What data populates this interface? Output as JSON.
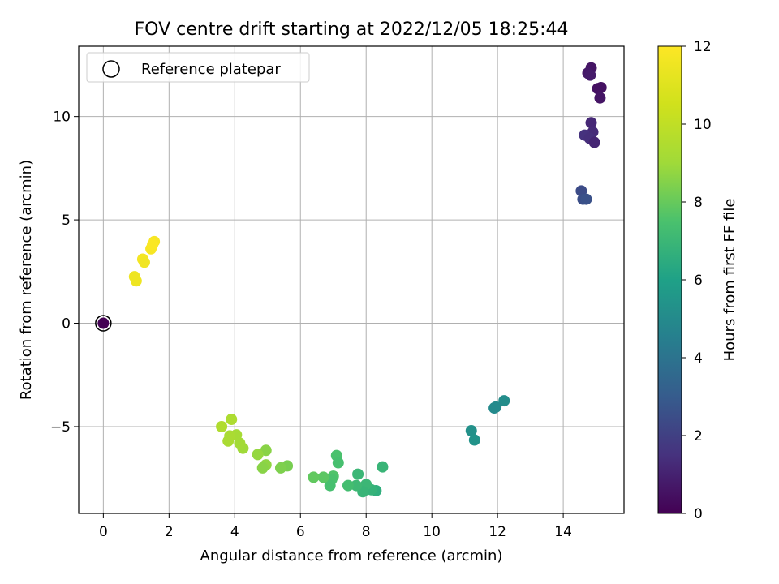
{
  "chart_data": {
    "type": "scatter",
    "title": "FOV centre drift starting at 2022/12/05 18:25:44",
    "xlabel": "Angular distance from reference (arcmin)",
    "ylabel": "Rotation from reference (arcmin)",
    "xlim": [
      -0.75,
      15.85
    ],
    "ylim": [
      -9.2,
      13.4
    ],
    "xticks": [
      0,
      2,
      4,
      6,
      8,
      10,
      12,
      14
    ],
    "yticks": [
      -5,
      0,
      5,
      10
    ],
    "ytick_labels": [
      "−5",
      "0",
      "5",
      "10"
    ],
    "grid": true,
    "legend": {
      "placement": "top-left",
      "entries": [
        "Reference platepar"
      ]
    },
    "colorbar": {
      "label": "Hours from first FF file",
      "colormap": "viridis",
      "range": [
        0,
        12
      ],
      "ticks": [
        0,
        2,
        4,
        6,
        8,
        10,
        12
      ]
    },
    "reference_point": {
      "x": 0,
      "y": 0
    },
    "points": [
      {
        "x": 0.0,
        "y": 0.0,
        "c": 0.0
      },
      {
        "x": 14.85,
        "y": 12.35,
        "c": 0.6
      },
      {
        "x": 14.75,
        "y": 12.1,
        "c": 0.7
      },
      {
        "x": 14.82,
        "y": 12.0,
        "c": 0.8
      },
      {
        "x": 15.05,
        "y": 11.35,
        "c": 0.5
      },
      {
        "x": 15.15,
        "y": 11.4,
        "c": 0.5
      },
      {
        "x": 15.12,
        "y": 10.9,
        "c": 0.6
      },
      {
        "x": 14.85,
        "y": 9.7,
        "c": 1.2
      },
      {
        "x": 14.9,
        "y": 9.25,
        "c": 1.3
      },
      {
        "x": 14.65,
        "y": 9.1,
        "c": 1.5
      },
      {
        "x": 14.8,
        "y": 8.95,
        "c": 1.4
      },
      {
        "x": 14.95,
        "y": 8.75,
        "c": 1.1
      },
      {
        "x": 14.55,
        "y": 6.4,
        "c": 2.4
      },
      {
        "x": 14.6,
        "y": 6.0,
        "c": 2.5
      },
      {
        "x": 14.7,
        "y": 6.0,
        "c": 2.6
      },
      {
        "x": 12.2,
        "y": -3.75,
        "c": 5.1
      },
      {
        "x": 11.95,
        "y": -4.05,
        "c": 5.0
      },
      {
        "x": 11.9,
        "y": -4.1,
        "c": 5.0
      },
      {
        "x": 11.2,
        "y": -5.2,
        "c": 5.3
      },
      {
        "x": 11.3,
        "y": -5.65,
        "c": 5.4
      },
      {
        "x": 8.5,
        "y": -6.95,
        "c": 6.9
      },
      {
        "x": 8.3,
        "y": -8.1,
        "c": 6.6
      },
      {
        "x": 8.15,
        "y": -8.05,
        "c": 6.8
      },
      {
        "x": 8.0,
        "y": -7.8,
        "c": 7.0
      },
      {
        "x": 7.9,
        "y": -8.15,
        "c": 6.9
      },
      {
        "x": 7.75,
        "y": -7.3,
        "c": 7.0
      },
      {
        "x": 7.7,
        "y": -7.85,
        "c": 7.1
      },
      {
        "x": 7.45,
        "y": -7.85,
        "c": 7.3
      },
      {
        "x": 7.1,
        "y": -6.4,
        "c": 7.5
      },
      {
        "x": 7.15,
        "y": -6.75,
        "c": 7.4
      },
      {
        "x": 7.0,
        "y": -7.4,
        "c": 7.6
      },
      {
        "x": 6.95,
        "y": -7.55,
        "c": 7.5
      },
      {
        "x": 6.9,
        "y": -7.85,
        "c": 7.4
      },
      {
        "x": 6.7,
        "y": -7.45,
        "c": 7.8
      },
      {
        "x": 6.4,
        "y": -7.45,
        "c": 7.9
      },
      {
        "x": 5.6,
        "y": -6.9,
        "c": 8.3
      },
      {
        "x": 5.4,
        "y": -7.0,
        "c": 8.4
      },
      {
        "x": 4.95,
        "y": -6.15,
        "c": 8.6
      },
      {
        "x": 4.95,
        "y": -6.85,
        "c": 8.7
      },
      {
        "x": 4.85,
        "y": -7.0,
        "c": 8.6
      },
      {
        "x": 4.7,
        "y": -6.35,
        "c": 8.8
      },
      {
        "x": 4.25,
        "y": -6.05,
        "c": 9.0
      },
      {
        "x": 4.15,
        "y": -5.8,
        "c": 9.1
      },
      {
        "x": 4.05,
        "y": -5.4,
        "c": 9.2
      },
      {
        "x": 3.9,
        "y": -4.65,
        "c": 9.4
      },
      {
        "x": 3.85,
        "y": -5.45,
        "c": 9.3
      },
      {
        "x": 3.8,
        "y": -5.7,
        "c": 9.3
      },
      {
        "x": 3.6,
        "y": -5.0,
        "c": 9.5
      },
      {
        "x": 1.55,
        "y": 3.95,
        "c": 11.8
      },
      {
        "x": 1.45,
        "y": 3.6,
        "c": 11.8
      },
      {
        "x": 1.5,
        "y": 3.8,
        "c": 11.9
      },
      {
        "x": 1.2,
        "y": 3.1,
        "c": 11.7
      },
      {
        "x": 1.25,
        "y": 2.95,
        "c": 11.6
      },
      {
        "x": 0.95,
        "y": 2.25,
        "c": 11.5
      },
      {
        "x": 1.0,
        "y": 2.05,
        "c": 11.5
      }
    ]
  }
}
